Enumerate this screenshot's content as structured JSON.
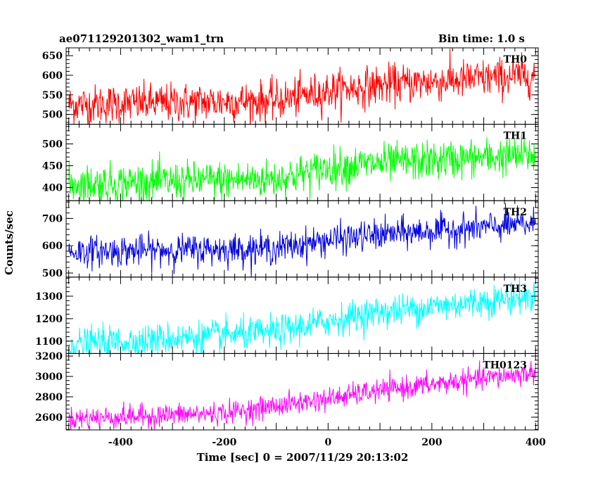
{
  "header": {
    "left": "ae071129201302_wam1_trn",
    "right": "Bin time: 1.0 s"
  },
  "chart_data": {
    "type": "line",
    "xlabel": "Time [sec] 0 = 2007/11/29 20:13:02",
    "ylabel": "Counts/sec",
    "xlim": [
      -505,
      405
    ],
    "x_ticks": [
      -400,
      -200,
      0,
      200,
      400
    ],
    "bin_time_sec": 1.0,
    "grid": false,
    "panels": [
      {
        "name": "TH0",
        "color": "#ff0000",
        "ylim": [
          475,
          670
        ],
        "y_ticks": [
          500,
          550,
          600,
          650
        ],
        "trend": [
          [
            -500,
            525
          ],
          [
            -100,
            535
          ],
          [
            0,
            560
          ],
          [
            100,
            575
          ],
          [
            400,
            600
          ]
        ],
        "noise_sd": 25
      },
      {
        "name": "TH1",
        "color": "#00ff00",
        "ylim": [
          370,
          545
        ],
        "y_ticks": [
          400,
          450,
          500
        ],
        "trend": [
          [
            -500,
            408
          ],
          [
            -100,
            420
          ],
          [
            0,
            445
          ],
          [
            100,
            455
          ],
          [
            400,
            475
          ]
        ],
        "noise_sd": 22
      },
      {
        "name": "TH2",
        "color": "#0000dd",
        "ylim": [
          485,
          765
        ],
        "y_ticks": [
          500,
          600,
          700
        ],
        "trend": [
          [
            -500,
            578
          ],
          [
            -100,
            590
          ],
          [
            0,
            620
          ],
          [
            100,
            640
          ],
          [
            400,
            680
          ]
        ],
        "noise_sd": 28
      },
      {
        "name": "TH3",
        "color": "#00ffff",
        "ylim": [
          1045,
          1385
        ],
        "y_ticks": [
          1100,
          1200,
          1300
        ],
        "trend": [
          [
            -500,
            1085
          ],
          [
            -100,
            1140
          ],
          [
            0,
            1190
          ],
          [
            100,
            1230
          ],
          [
            400,
            1300
          ]
        ],
        "noise_sd": 35
      },
      {
        "name": "TH0123",
        "color": "#ff00ff",
        "ylim": [
          2475,
          3225
        ],
        "y_ticks": [
          2600,
          2800,
          3000,
          3200
        ],
        "trend": [
          [
            -500,
            2585
          ],
          [
            -200,
            2640
          ],
          [
            0,
            2780
          ],
          [
            100,
            2860
          ],
          [
            400,
            3040
          ]
        ],
        "noise_sd": 55
      }
    ]
  }
}
